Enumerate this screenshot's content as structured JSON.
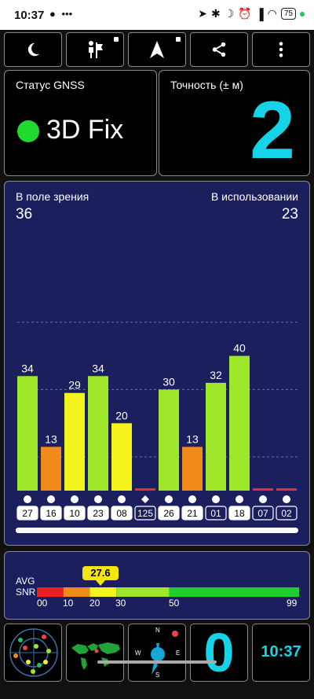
{
  "status_bar": {
    "time": "10:37",
    "left_icons": [
      "chat-bubble-icon",
      "more-dots-icon"
    ],
    "right_icons": [
      "location-arrow-icon",
      "bluetooth-icon",
      "moon-icon",
      "alarm-off-icon",
      "signal-icon",
      "wifi-icon"
    ],
    "battery": "75"
  },
  "toolbar": {
    "buttons": [
      {
        "name": "night-mode-button",
        "icon": "moon-icon"
      },
      {
        "name": "map-flag-button",
        "icon": "person-flag-icon"
      },
      {
        "name": "navigate-button",
        "icon": "navigation-arrow-icon"
      },
      {
        "name": "share-button",
        "icon": "share-icon"
      },
      {
        "name": "overflow-menu-button",
        "icon": "vertical-dots-icon"
      }
    ]
  },
  "gnss_status": {
    "title": "Статус GNSS",
    "value": "3D Fix",
    "indicator_color": "#22d92e"
  },
  "accuracy": {
    "title": "Точность (± м)",
    "value": "2",
    "color": "#16d3e8"
  },
  "satellites": {
    "in_view_label": "В поле зрения",
    "in_view_value": "36",
    "in_use_label": "В использовании",
    "in_use_value": "23"
  },
  "chart_data": {
    "type": "bar",
    "categories": [
      "27",
      "16",
      "10",
      "23",
      "08",
      "125",
      "26",
      "21",
      "01",
      "18",
      "07",
      "02"
    ],
    "values": [
      34,
      13,
      29,
      34,
      20,
      0,
      30,
      13,
      32,
      40,
      0,
      0
    ],
    "ylim": [
      0,
      70
    ],
    "grid": true,
    "bar_colors": [
      "#9ee62a",
      "#f08a1a",
      "#f4f41c",
      "#9ee62a",
      "#f4f41c",
      "#e53030",
      "#9ee62a",
      "#f08a1a",
      "#9ee62a",
      "#9ee62a",
      "#e53030",
      "#e53030"
    ],
    "markers": [
      "dot",
      "dot",
      "dot",
      "dot",
      "dot",
      "diamond",
      "dot",
      "dot",
      "dot",
      "dot",
      "dot",
      "dot"
    ],
    "boxed_ids": [
      "125",
      "01",
      "07",
      "02"
    ],
    "in_use": [
      true,
      true,
      true,
      true,
      true,
      false,
      true,
      true,
      false,
      true,
      false,
      false
    ]
  },
  "snr": {
    "label_line1": "AVG",
    "label_line2": "SNR",
    "avg_value": "27.6",
    "scale_ticks": [
      "00",
      "10",
      "20",
      "30",
      "50",
      "99"
    ],
    "segments": [
      {
        "from": 0,
        "to": 10,
        "color": "#e8201e"
      },
      {
        "from": 10,
        "to": 20,
        "color": "#f28a19"
      },
      {
        "from": 20,
        "to": 30,
        "color": "#f4f41c"
      },
      {
        "from": 30,
        "to": 50,
        "color": "#9ee62a"
      },
      {
        "from": 50,
        "to": 99,
        "color": "#1dcf2e"
      }
    ]
  },
  "bottom_tiles": {
    "radar_icon": "sky-radar-icon",
    "world_map_icon": "world-map-icon",
    "compass_icon": "compass-icon",
    "compass_n": "N",
    "compass_s": "S",
    "compass_w": "W",
    "compass_e": "E",
    "sats_value": "0",
    "clock": "10:37",
    "accent": "#16d3e8"
  }
}
